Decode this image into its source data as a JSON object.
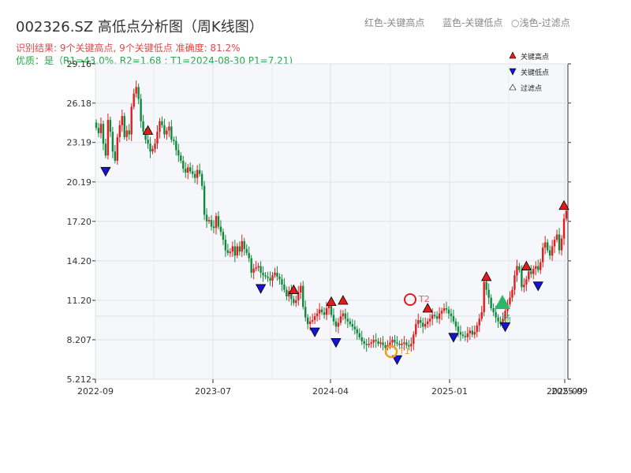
{
  "title": "002326.SZ 高低点分析图（周K线图）",
  "subtitle_result": "识别结果: 9个关键高点, 9个关键低点  准确度: 81.2%",
  "subtitle_quality": "优质：是（R1=43.0%, R2=1.68 ; T1=2024-08-30 P1=7.21)",
  "top_legend": {
    "red": "红色-关键高点",
    "blue": "蓝色-关键低点",
    "light": "○浅色-过滤点"
  },
  "legend": {
    "high": "关键高点",
    "low": "关键低点",
    "filtered": "过滤点"
  },
  "annotations": {
    "t1": "T1",
    "t2": "T2",
    "breakout": "场"
  },
  "colors": {
    "up": "#e11d1d",
    "down": "#0f8a3c",
    "high_marker": "#e51b1b",
    "low_marker": "#1414d8",
    "grid": "#dde2e8",
    "plot_bg": "#f5f7fa",
    "t1_circle": "#f0a020",
    "breakout": "#2fb56b"
  },
  "chart_data": {
    "type": "candlestick",
    "title": "002326.SZ 高低点分析图（周K线图）",
    "xlabel": "",
    "ylabel": "",
    "grid": true,
    "legend_position": "top-right",
    "ylim": [
      5.212,
      29.16
    ],
    "y_ticks": [
      "5.212",
      "8.207",
      "11.20",
      "14.20",
      "17.20",
      "20.19",
      "23.19",
      "26.18",
      "29.16"
    ],
    "x_ticks": [
      "2022-09",
      "2023-07",
      "2024-04",
      "2025-01",
      "2025-09"
    ],
    "x_ticks_extra": [
      "2025-09"
    ],
    "close": [
      24.3,
      23.9,
      24.6,
      23.1,
      22.2,
      24.9,
      24.0,
      22.5,
      21.8,
      23.6,
      24.5,
      25.2,
      23.6,
      24.1,
      23.8,
      25.9,
      26.9,
      27.4,
      26.5,
      24.8,
      24.0,
      23.4,
      23.1,
      22.5,
      22.7,
      23.1,
      24.0,
      24.8,
      24.5,
      23.8,
      24.1,
      24.4,
      23.4,
      23.3,
      22.6,
      22.2,
      21.8,
      21.2,
      20.9,
      21.3,
      21.0,
      20.8,
      20.5,
      21.1,
      20.8,
      19.9,
      17.7,
      17.2,
      17.3,
      16.8,
      16.7,
      17.6,
      16.8,
      16.4,
      15.8,
      15.0,
      14.8,
      14.9,
      15.3,
      14.6,
      15.3,
      14.9,
      15.7,
      15.1,
      14.8,
      14.4,
      13.3,
      13.6,
      13.7,
      13.8,
      13.3,
      13.1,
      13.0,
      12.9,
      12.7,
      13.1,
      13.3,
      13.0,
      12.8,
      12.4,
      12.0,
      11.5,
      11.9,
      11.3,
      11.0,
      11.2,
      11.8,
      12.3,
      10.7,
      9.9,
      9.4,
      9.6,
      9.7,
      10.0,
      10.2,
      10.5,
      10.3,
      10.1,
      10.6,
      10.8,
      10.1,
      9.6,
      9.2,
      9.5,
      10.0,
      10.2,
      9.8,
      9.6,
      9.4,
      9.2,
      9.0,
      8.7,
      8.4,
      8.1,
      7.9,
      7.8,
      7.9,
      8.0,
      8.2,
      8.1,
      7.9,
      8.0,
      7.8,
      7.6,
      7.8,
      8.0,
      8.2,
      8.0,
      7.9,
      7.8,
      7.9,
      8.0,
      7.8,
      7.7,
      7.9,
      8.6,
      9.4,
      9.7,
      9.5,
      9.2,
      9.4,
      9.6,
      9.8,
      10.1,
      10.0,
      9.8,
      10.2,
      10.4,
      10.6,
      10.5,
      10.2,
      10.0,
      9.6,
      9.2,
      8.8,
      8.6,
      8.5,
      8.4,
      8.7,
      8.9,
      8.6,
      8.8,
      9.3,
      9.8,
      10.3,
      12.6,
      12.0,
      11.4,
      10.6,
      10.3,
      9.9,
      9.6,
      9.4,
      9.8,
      10.4,
      10.9,
      11.4,
      12.0,
      13.1,
      13.8,
      13.5,
      12.2,
      12.4,
      12.8,
      13.4,
      13.2,
      13.6,
      13.8,
      13.5,
      14.1,
      15.2,
      15.6,
      15.0,
      14.6,
      15.3,
      15.8,
      16.2,
      15.0,
      15.9,
      17.4,
      18.0
    ]
  }
}
